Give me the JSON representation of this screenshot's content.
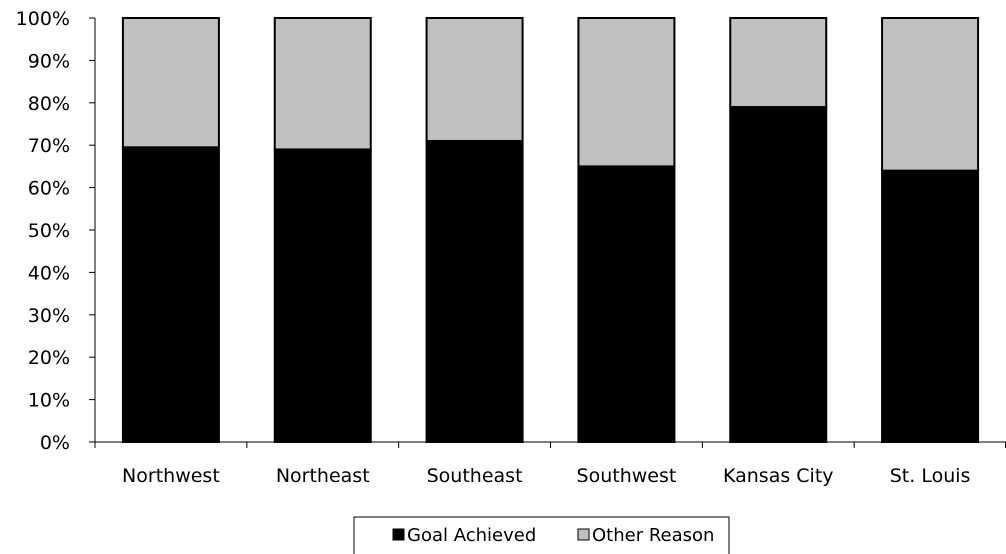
{
  "chart_data": {
    "type": "bar",
    "stacked": true,
    "percent_stacked": true,
    "categories": [
      "Northwest",
      "Northeast",
      "Southeast",
      "Southwest",
      "Kansas City",
      "St. Louis"
    ],
    "series": [
      {
        "name": "Goal Achieved",
        "values": [
          69.5,
          69,
          71,
          65,
          79,
          64
        ],
        "color": "#000000"
      },
      {
        "name": "Other Reason",
        "values": [
          30.5,
          31,
          29,
          35,
          21,
          36
        ],
        "color": "#c0c0c0"
      }
    ],
    "y_ticks": [
      "0%",
      "10%",
      "20%",
      "30%",
      "40%",
      "50%",
      "60%",
      "70%",
      "80%",
      "90%",
      "100%"
    ],
    "ylim": [
      0,
      100
    ],
    "grid": false,
    "legend_position": "bottom"
  }
}
